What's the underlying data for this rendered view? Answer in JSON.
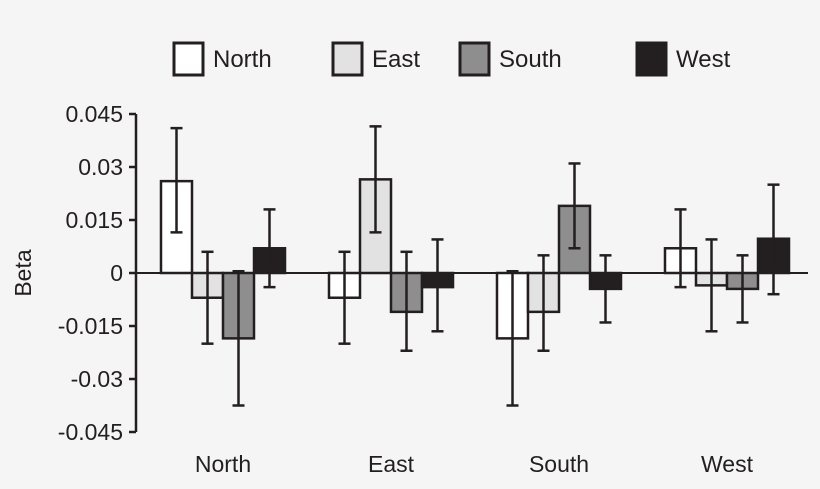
{
  "chart_data": {
    "type": "bar",
    "title": "",
    "xlabel": "",
    "ylabel": "Beta",
    "ylim": [
      -0.045,
      0.045
    ],
    "yticks": [
      0.045,
      0.03,
      0.015,
      0,
      -0.015,
      -0.03,
      -0.045
    ],
    "ytick_labels": [
      "0.045",
      "0.03",
      "0.015",
      "0",
      "-0.015",
      "-0.03",
      "-0.045"
    ],
    "categories": [
      "North",
      "East",
      "South",
      "West"
    ],
    "legend_position": "top",
    "grid": false,
    "series": [
      {
        "name": "North",
        "color": "#ffffff",
        "values": [
          0.026,
          -0.007,
          -0.0185,
          0.007
        ],
        "err_upper": [
          0.041,
          0.006,
          0.0005,
          0.018
        ],
        "err_lower": [
          0.0115,
          -0.02,
          -0.0375,
          -0.004
        ]
      },
      {
        "name": "East",
        "color": "#e1e2e1",
        "values": [
          -0.007,
          0.0265,
          -0.011,
          -0.0035
        ],
        "err_upper": [
          0.006,
          0.0415,
          0.005,
          0.0095
        ],
        "err_lower": [
          -0.02,
          0.0115,
          -0.022,
          -0.0165
        ]
      },
      {
        "name": "South",
        "color": "#8e8e8f",
        "values": [
          -0.0185,
          -0.011,
          0.019,
          -0.0045
        ],
        "err_upper": [
          0.0005,
          0.006,
          0.031,
          0.005
        ],
        "err_lower": [
          -0.0375,
          -0.022,
          0.007,
          -0.014
        ]
      },
      {
        "name": "West",
        "color": "#231f20",
        "values": [
          0.007,
          -0.004,
          -0.0045,
          0.0097
        ],
        "err_upper": [
          0.018,
          0.0095,
          0.005,
          0.025
        ],
        "err_lower": [
          -0.004,
          -0.0165,
          -0.014,
          -0.006
        ]
      }
    ]
  }
}
